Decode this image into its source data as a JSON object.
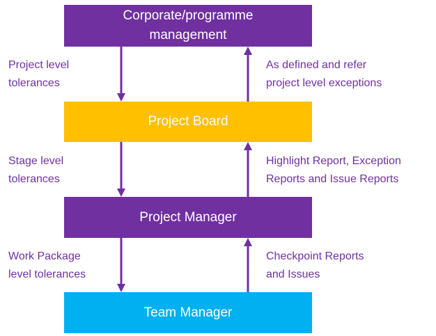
{
  "boxes": {
    "corporate": {
      "line1": "Corporate/programme",
      "line2": "management",
      "color": "#7030a0"
    },
    "project_board": {
      "label": "Project Board",
      "color": "#ffc000"
    },
    "project_manager": {
      "label": "Project Manager",
      "color": "#7030a0"
    },
    "team_manager": {
      "label": "Team Manager",
      "color": "#00b0f0"
    }
  },
  "downward_labels": {
    "project_tolerances": "Project level\ntolerances",
    "stage_tolerances": "Stage level\ntolerances",
    "work_package_tolerances": "Work Package\nlevel tolerances"
  },
  "upward_labels": {
    "project_exceptions": "As defined and refer\nproject level exceptions",
    "highlight_reports": "Highlight Report, Exception\nReports and Issue Reports",
    "checkpoint_reports": "Checkpoint Reports\nand Issues"
  },
  "colors": {
    "arrow": "#7030a0",
    "label_text": "#7030a0"
  }
}
